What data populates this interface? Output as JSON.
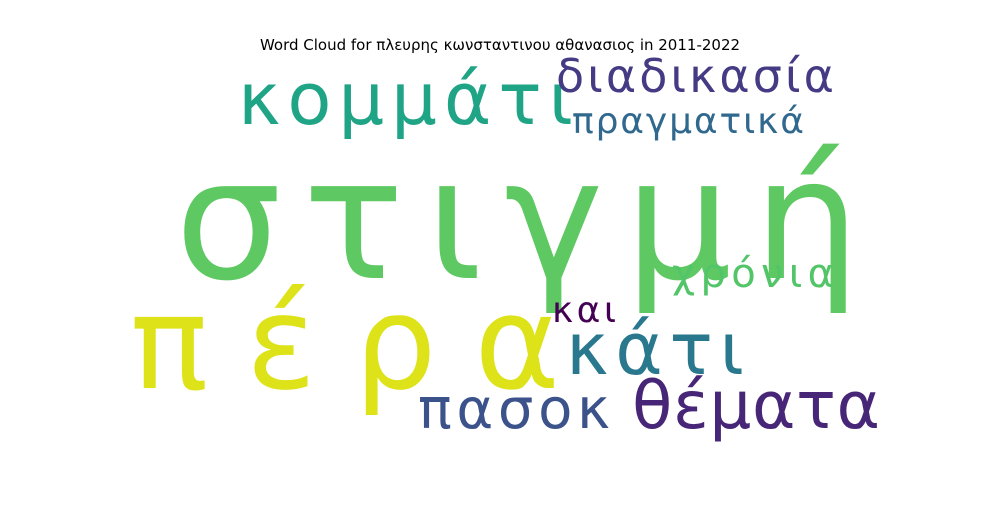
{
  "chart_data": {
    "type": "wordcloud",
    "title": "Word Cloud for πλευρης κωνσταντινου αθανασιος in 2011-2022",
    "words": [
      {
        "text": "στιγμή",
        "color": "#5ec962"
      },
      {
        "text": "πέρα",
        "color": "#dde318"
      },
      {
        "text": "κομμάτι",
        "color": "#20a486"
      },
      {
        "text": "διαδικασία",
        "color": "#443b84"
      },
      {
        "text": "πραγματικά",
        "color": "#31688e"
      },
      {
        "text": "κάτι",
        "color": "#2a788e"
      },
      {
        "text": "χρόνια",
        "color": "#52c569"
      },
      {
        "text": "θέματα",
        "color": "#482677"
      },
      {
        "text": "πασοκ",
        "color": "#3b528b"
      },
      {
        "text": "και",
        "color": "#440154"
      }
    ]
  }
}
